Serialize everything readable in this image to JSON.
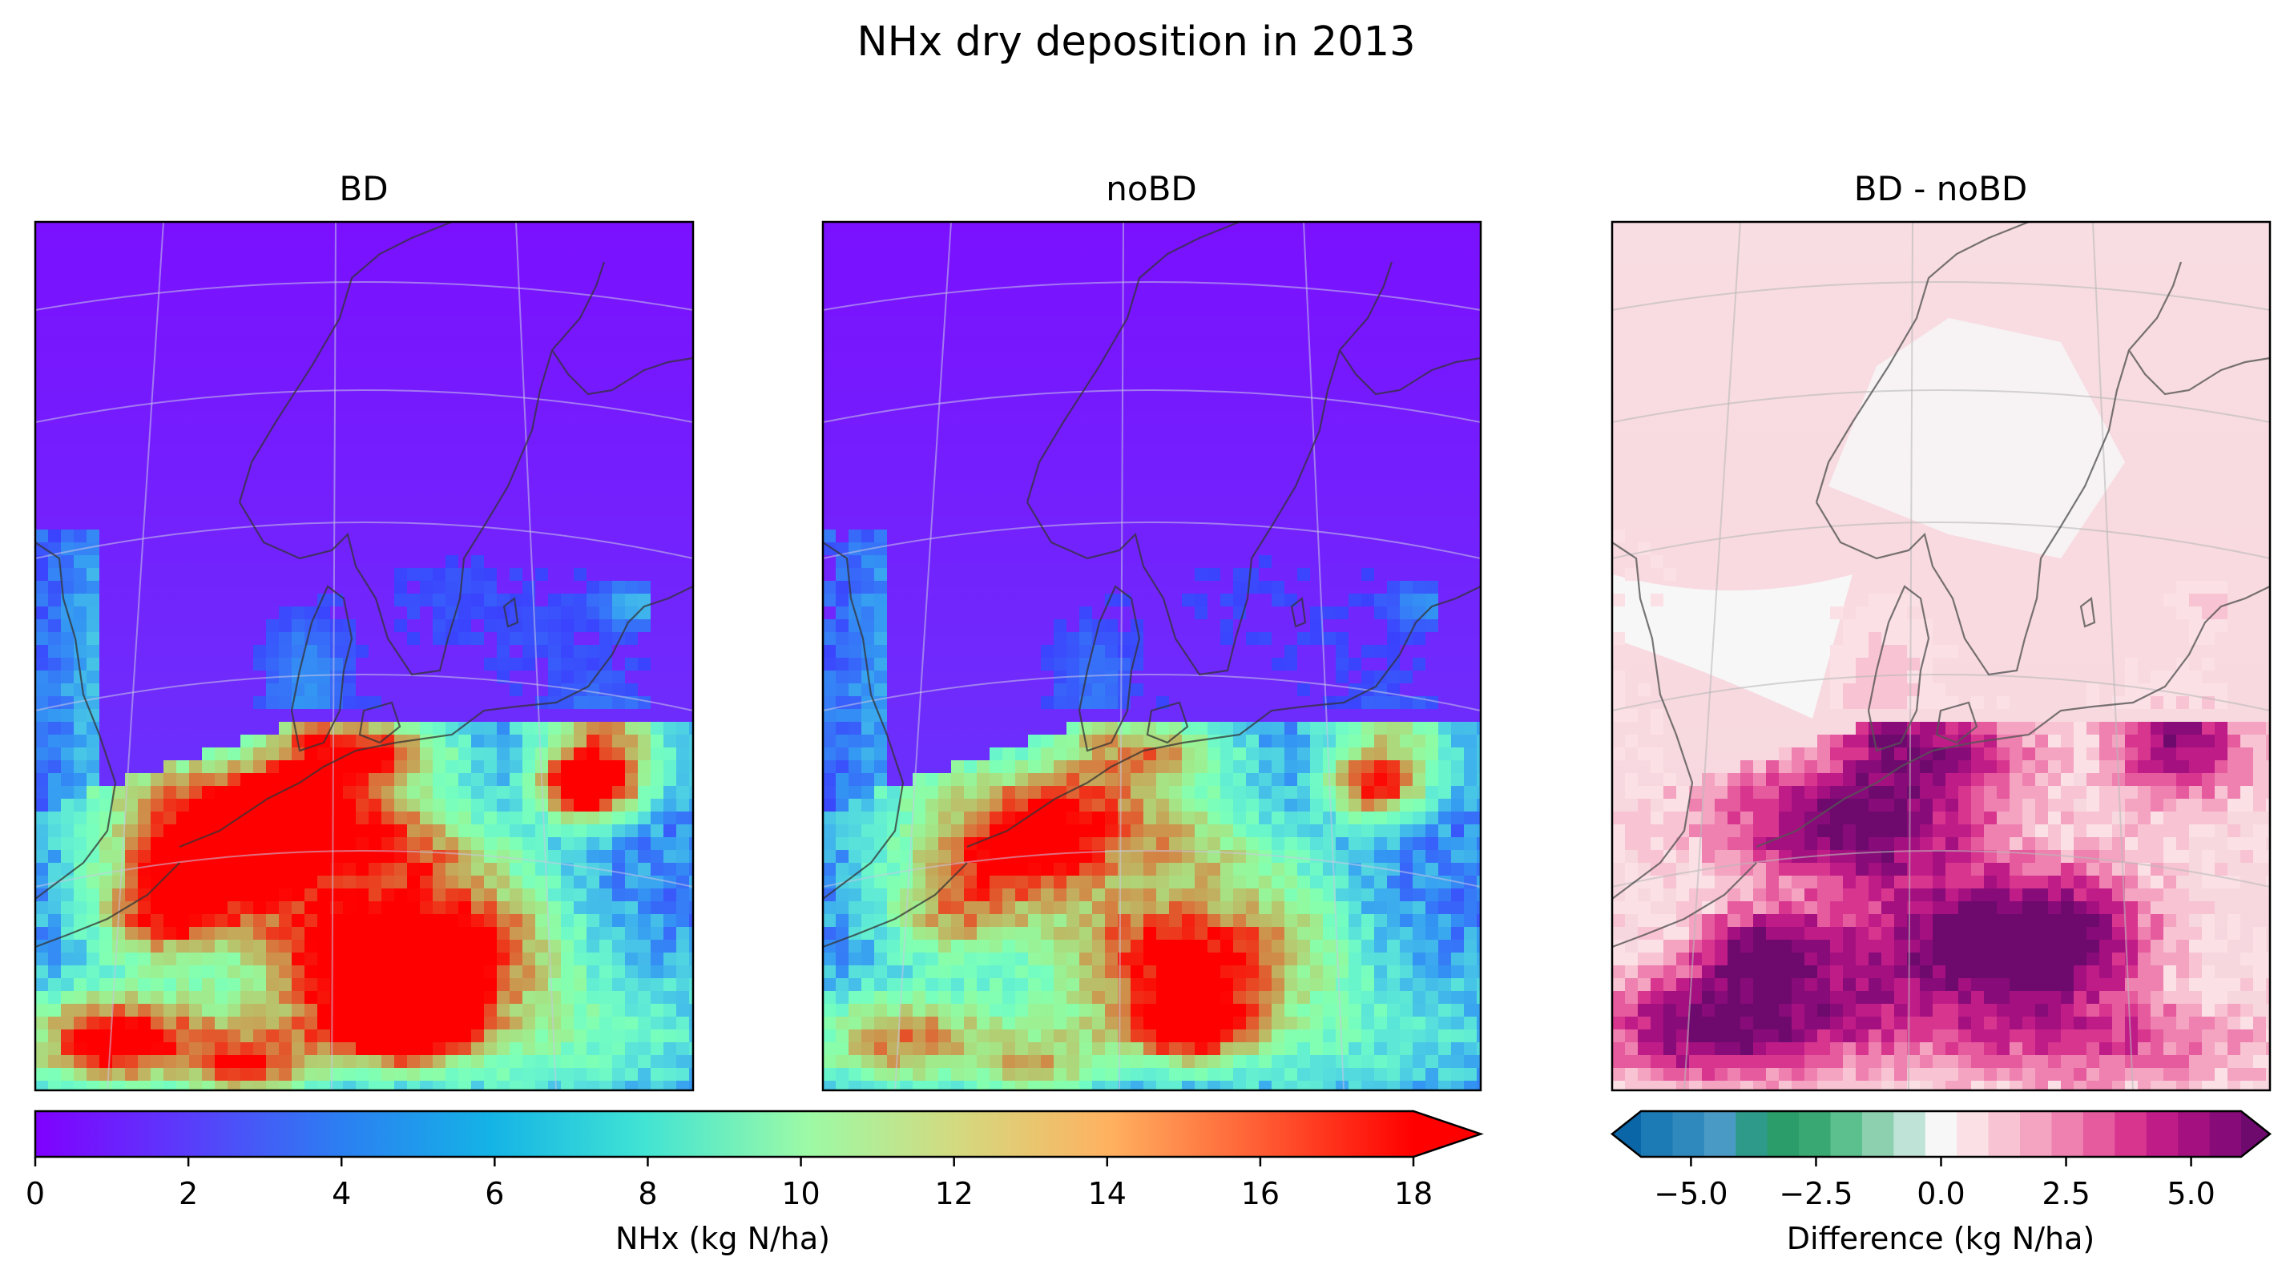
{
  "figure": {
    "title": "NHx dry deposition in 2013"
  },
  "panels": [
    {
      "id": "bd",
      "title": "BD"
    },
    {
      "id": "nobd",
      "title": "noBD"
    },
    {
      "id": "diff",
      "title": "BD - noBD"
    }
  ],
  "colorbar_nhx": {
    "label": "NHx (kg N/ha)",
    "colormap": "rainbow",
    "ticks": [
      "0",
      "2",
      "4",
      "6",
      "8",
      "10",
      "12",
      "14",
      "16",
      "18"
    ],
    "range": [
      0,
      18
    ],
    "extend": "max"
  },
  "colorbar_diff": {
    "label": "Difference (kg N/ha)",
    "colormap": "diverging teal-green-white-pink-purple",
    "ticks": [
      "−5.0",
      "−2.5",
      "0.0",
      "2.5",
      "5.0"
    ],
    "range": [
      -6,
      6
    ],
    "extend": "both",
    "colors": [
      "#0a66a6",
      "#1c7ab4",
      "#3089bd",
      "#4a9ac6",
      "#2e9a8a",
      "#2a9d6a",
      "#3aa872",
      "#5bbf8e",
      "#8dd0b0",
      "#bfe3d6",
      "#f7f7f7",
      "#fbe0e6",
      "#f8c3d2",
      "#f4a3c1",
      "#ee81b0",
      "#e65a9e",
      "#d8358f",
      "#c01c88",
      "#a4107f",
      "#870b78",
      "#6e0a6e"
    ]
  },
  "chart_data": [
    {
      "type": "heatmap",
      "title": "BD",
      "region": "Northern Europe / North Sea map",
      "colorbar": "NHx (kg N/ha)",
      "zlim": [
        0,
        18
      ],
      "notes": "highest values (>18) over Netherlands / NW Germany and Denmark; near 0 over sea and Norway"
    },
    {
      "type": "heatmap",
      "title": "noBD",
      "region": "Northern Europe / North Sea map",
      "colorbar": "NHx (kg N/ha)",
      "zlim": [
        0,
        18
      ]
    },
    {
      "type": "heatmap",
      "title": "BD - noBD",
      "region": "Northern Europe / North Sea map",
      "colorbar": "Difference (kg N/ha)",
      "zlim": [
        -6,
        6
      ]
    }
  ]
}
